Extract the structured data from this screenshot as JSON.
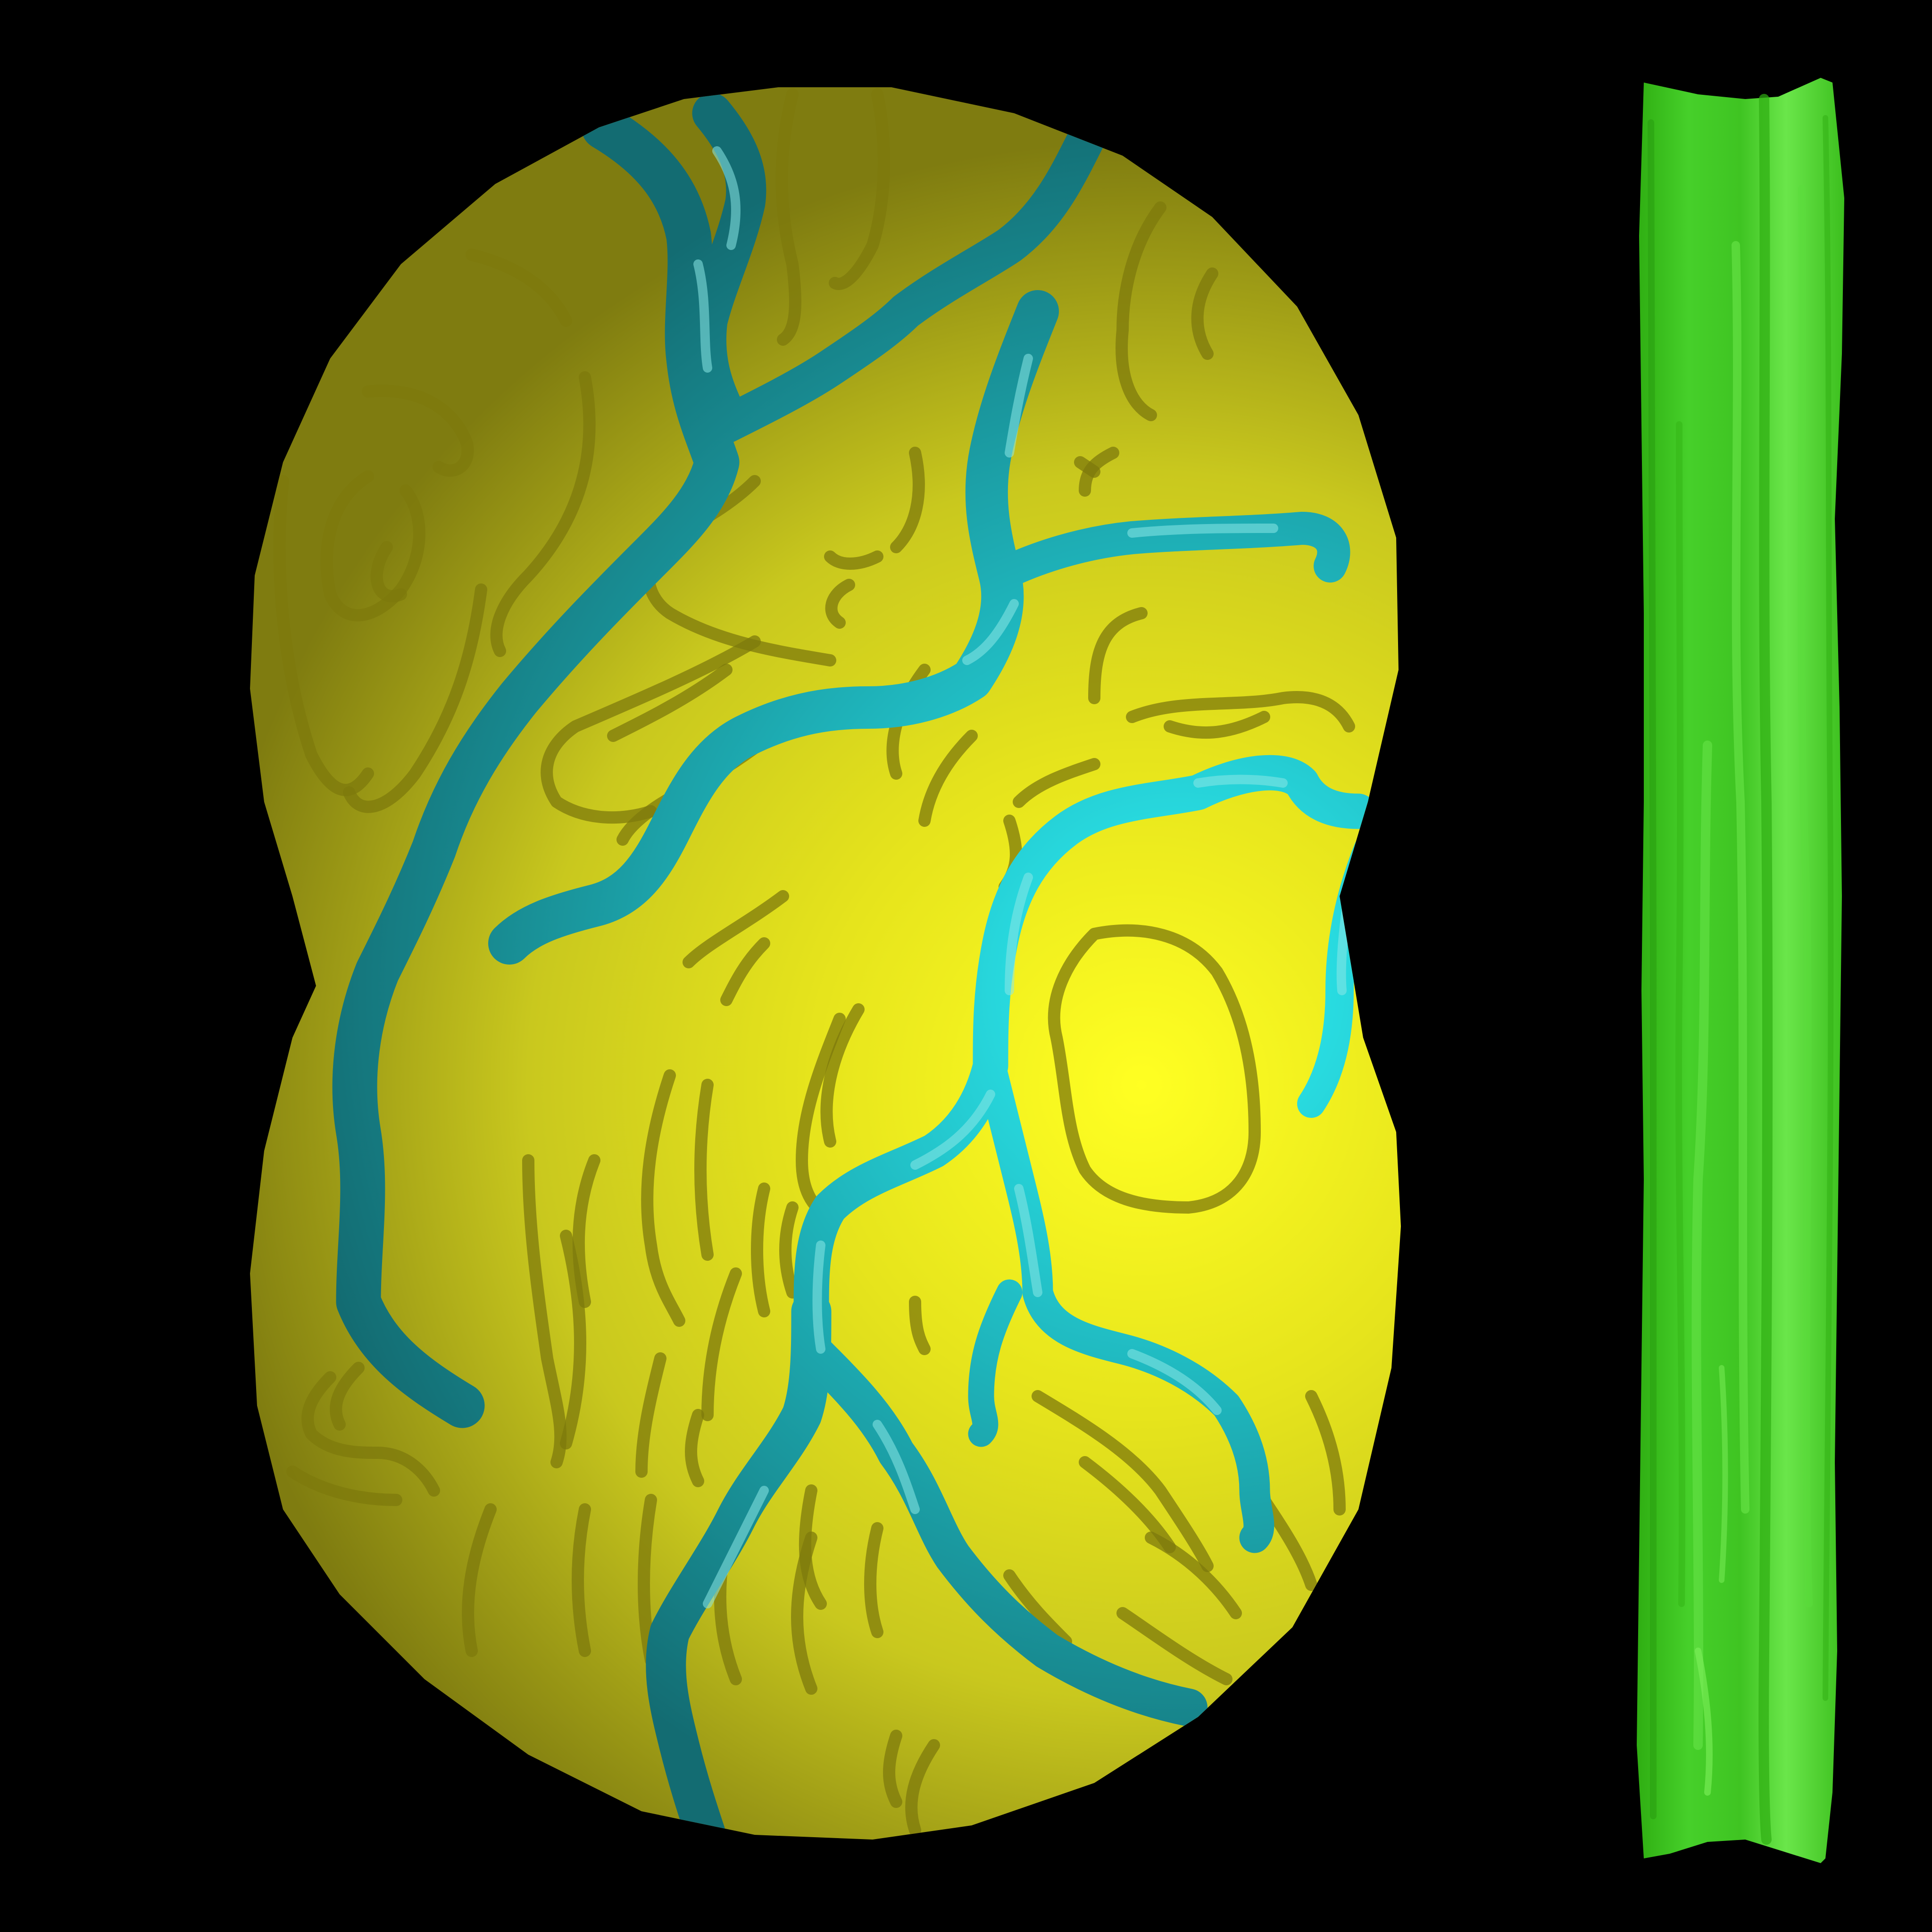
{
  "scene": {
    "background_color": "#000000",
    "textures": [
      {
        "name": "terrain-map-texture",
        "base_color": "#c9c81e",
        "highlight_color": "#ffff22",
        "shadow_color": "#7f7c10",
        "contour_color": "#7e7a0c",
        "river_dark_color": "#136c72",
        "river_bright_color": "#2ef2f6",
        "river_highlight_color": "#8be8e6"
      },
      {
        "name": "green-strip-texture",
        "base_color": "#46d02a",
        "dark_color": "#2fae12",
        "light_color": "#6ae64a"
      }
    ]
  }
}
